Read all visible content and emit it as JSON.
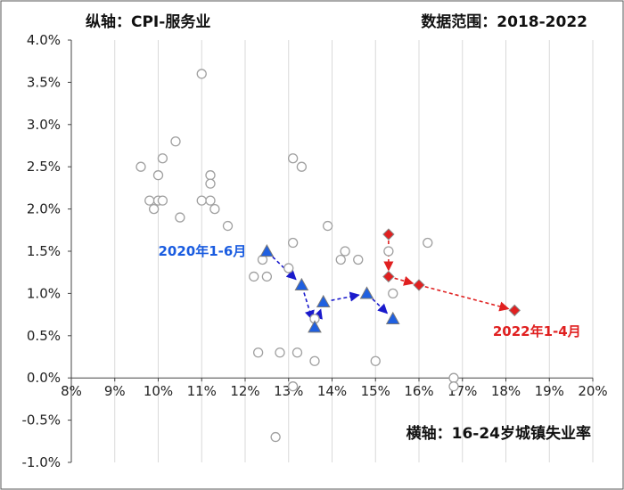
{
  "chart_data": {
    "type": "scatter",
    "y_axis_note": "纵轴：CPI-服务业",
    "range_note": "数据范围：2018-2022",
    "x_axis_note": "横轴：16-24岁城镇失业率",
    "xlim": [
      8,
      20
    ],
    "ylim": [
      -1.0,
      4.0
    ],
    "x_ticks": [
      "8%",
      "9%",
      "10%",
      "11%",
      "12%",
      "13%",
      "14%",
      "15%",
      "16%",
      "17%",
      "18%",
      "19%",
      "20%"
    ],
    "y_ticks": [
      "-1.0%",
      "-0.5%",
      "0.0%",
      "0.5%",
      "1.0%",
      "1.5%",
      "2.0%",
      "2.5%",
      "3.0%",
      "3.5%",
      "4.0%"
    ],
    "grid": "vertical",
    "colors": {
      "circle": "#a0a0a0",
      "blue": "#2060e0",
      "red": "#e02020",
      "arrow_blue": "#1a1acc",
      "arrow_red": "#e02020"
    },
    "series": [
      {
        "marker": "circle",
        "points": [
          [
            9.6,
            2.5
          ],
          [
            9.8,
            2.1
          ],
          [
            9.9,
            2.0
          ],
          [
            10.0,
            2.1
          ],
          [
            10.0,
            2.4
          ],
          [
            10.1,
            2.1
          ],
          [
            10.1,
            2.6
          ],
          [
            10.4,
            2.8
          ],
          [
            10.5,
            1.9
          ],
          [
            11.0,
            3.6
          ],
          [
            11.0,
            2.1
          ],
          [
            11.2,
            2.4
          ],
          [
            11.2,
            2.3
          ],
          [
            11.2,
            2.1
          ],
          [
            11.3,
            2.0
          ],
          [
            11.6,
            1.8
          ],
          [
            12.2,
            1.2
          ],
          [
            12.3,
            0.3
          ],
          [
            12.4,
            1.4
          ],
          [
            12.5,
            1.2
          ],
          [
            12.7,
            -0.7
          ],
          [
            12.8,
            0.3
          ],
          [
            13.0,
            1.3
          ],
          [
            13.1,
            2.6
          ],
          [
            13.1,
            1.6
          ],
          [
            13.1,
            -0.1
          ],
          [
            13.2,
            0.3
          ],
          [
            13.3,
            2.5
          ],
          [
            13.6,
            0.2
          ],
          [
            13.6,
            0.7
          ],
          [
            13.9,
            1.8
          ],
          [
            14.2,
            1.4
          ],
          [
            14.3,
            1.5
          ],
          [
            14.6,
            1.4
          ],
          [
            15.0,
            0.2
          ],
          [
            15.3,
            1.5
          ],
          [
            15.4,
            1.0
          ],
          [
            16.2,
            1.6
          ],
          [
            16.8,
            0.0
          ],
          [
            16.8,
            -0.1
          ]
        ]
      },
      {
        "marker": "triangle",
        "points": [
          [
            12.5,
            1.5
          ],
          [
            13.3,
            1.1
          ],
          [
            13.6,
            0.6
          ],
          [
            13.8,
            0.9
          ],
          [
            14.8,
            1.0
          ],
          [
            15.4,
            0.7
          ]
        ]
      },
      {
        "marker": "diamond",
        "points": [
          [
            15.3,
            1.7
          ],
          [
            15.3,
            1.2
          ],
          [
            16.0,
            1.1
          ],
          [
            18.2,
            0.8
          ]
        ]
      }
    ],
    "annotations": [
      {
        "text": "2020年1-6月",
        "x": 10.0,
        "y": 1.5,
        "color": "#1a5ce0"
      },
      {
        "text": "2022年1-4月",
        "x": 17.7,
        "y": 0.55,
        "color": "#e02020"
      }
    ]
  }
}
